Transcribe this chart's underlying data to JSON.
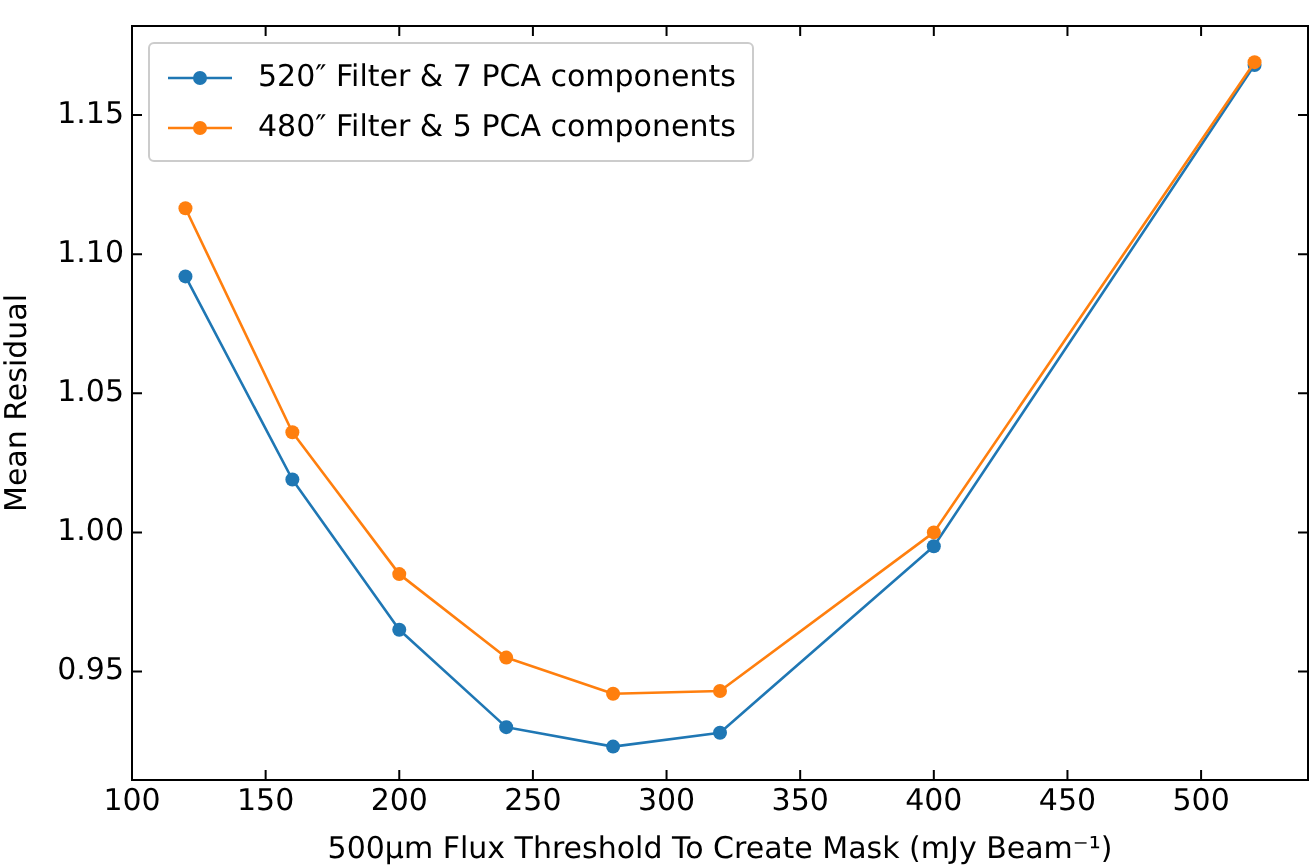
{
  "chart_data": {
    "type": "line",
    "xlabel": "500µm Flux Threshold To Create Mask (mJy Beam⁻¹)",
    "ylabel": "Mean Residual",
    "x": [
      120,
      160,
      200,
      240,
      280,
      320,
      400,
      520
    ],
    "series": [
      {
        "name": "520″ Filter & 7 PCA components",
        "color": "#1f77b4",
        "values": [
          1.092,
          1.019,
          0.965,
          0.93,
          0.923,
          0.928,
          0.995,
          1.168
        ]
      },
      {
        "name": "480″ Filter & 5 PCA components",
        "color": "#ff7f0e",
        "values": [
          1.1165,
          1.036,
          0.985,
          0.955,
          0.942,
          0.943,
          1.0,
          1.169
        ]
      }
    ],
    "xlim": [
      100,
      540
    ],
    "xticks": [
      100,
      150,
      200,
      250,
      300,
      350,
      400,
      450,
      500
    ],
    "ylim": [
      0.911,
      1.182
    ],
    "yticks": [
      0.95,
      {
        "value": 1.0,
        "label": "1.00"
      },
      1.05,
      {
        "value": 1.1,
        "label": "1.10"
      },
      1.15
    ],
    "grid": false,
    "legend": "top left",
    "marker": "circle",
    "line_style": "solid"
  }
}
